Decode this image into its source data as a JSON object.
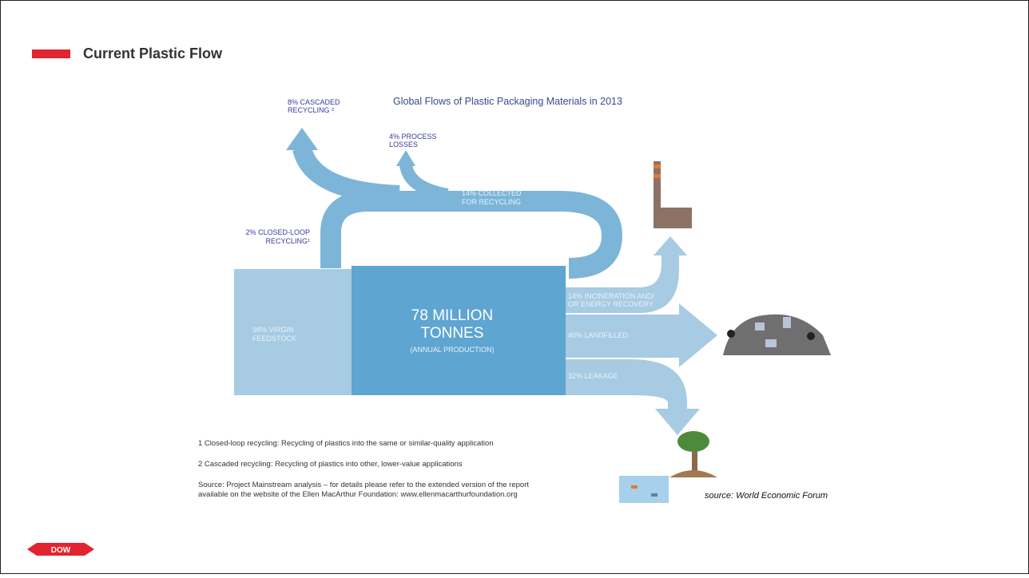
{
  "header": {
    "title": "Current Plastic Flow"
  },
  "diagram": {
    "title": "Global Flows of Plastic Packaging Materials in 2013",
    "labels": {
      "cascaded": [
        "8% CASCADED",
        "RECYCLING ²"
      ],
      "process": [
        "4% PROCESS",
        "LOSSES"
      ],
      "collected": [
        "14% COLLECTED",
        "FOR RECYCLING"
      ],
      "closed_loop": [
        "2% CLOSED-LOOP",
        "RECYCLING¹"
      ],
      "virgin": [
        "98% VIRGIN",
        "FEEDSTOCK"
      ],
      "production": [
        "78 MILLION",
        "TONNES",
        "(ANNUAL PRODUCTION)"
      ],
      "incineration": [
        "14% INCINERATION AND/",
        "OR ENERGY RECOVERY"
      ],
      "landfilled": "40% LANDFILLED",
      "leakage": "32% LEAKAGE"
    }
  },
  "footnotes": [
    "1 Closed-loop recycling: Recycling of plastics into the same or similar-quality application",
    "2 Cascaded recycling: Recycling of plastics into other, lower-value applications",
    "Source: Project Mainstream analysis – for details please refer to the extended version of the report",
    "available on the website of the Ellen MacArthur Foundation: www.ellenmacarthurfoundation.org"
  ],
  "source": "source: World Economic Forum",
  "logo": "DOW"
}
